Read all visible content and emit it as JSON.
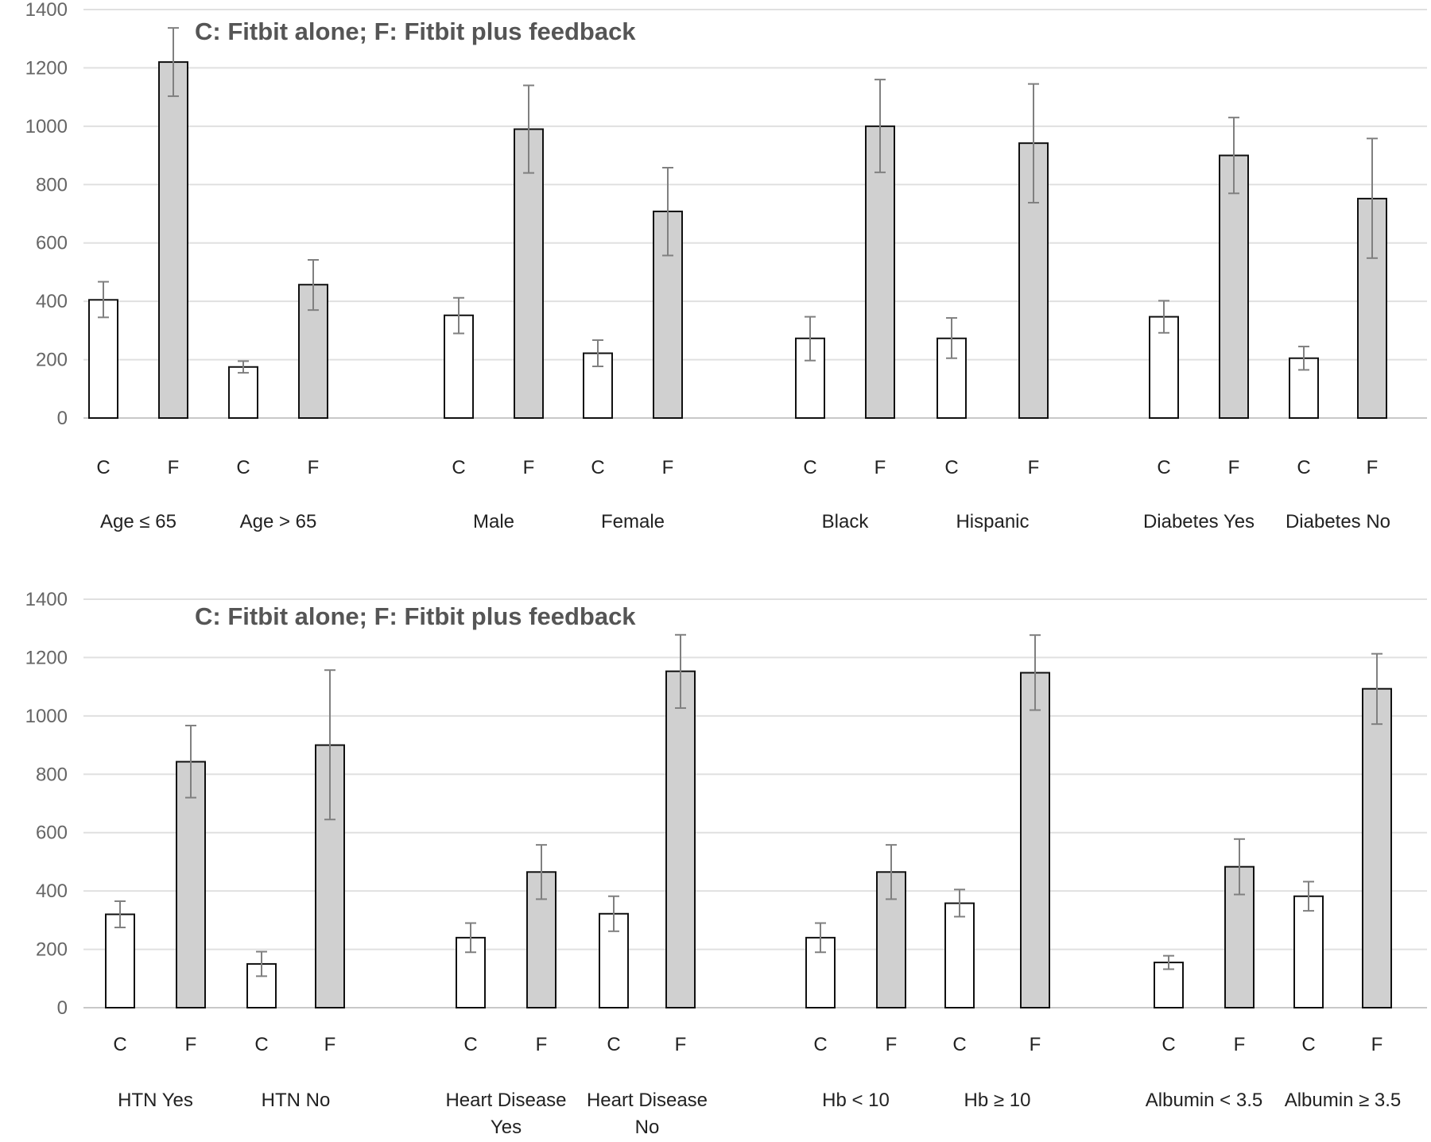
{
  "chart_data": [
    {
      "type": "bar",
      "title": "C: Fitbit alone; F: Fitbit plus feedback",
      "xlabel": "",
      "ylabel": "",
      "ylim": [
        0,
        1400
      ],
      "yticks": [
        0,
        200,
        400,
        600,
        800,
        1000,
        1200,
        1400
      ],
      "grid": true,
      "series": [
        {
          "name": "C: Fitbit alone",
          "color": "#ffffff"
        },
        {
          "name": "F: Fitbit plus feedback",
          "color": "#d0d0d0"
        }
      ],
      "groups": [
        {
          "label": [
            "Age ≤ 65"
          ],
          "bars": [
            {
              "tick": "C",
              "value": 405,
              "lo": 345,
              "hi": 467
            },
            {
              "tick": "F",
              "value": 1220,
              "lo": 1103,
              "hi": 1337
            }
          ]
        },
        {
          "label": [
            "Age > 65"
          ],
          "bars": [
            {
              "tick": "C",
              "value": 175,
              "lo": 155,
              "hi": 195
            },
            {
              "tick": "F",
              "value": 457,
              "lo": 370,
              "hi": 542
            }
          ]
        },
        {
          "label": [
            "Male"
          ],
          "bars": [
            {
              "tick": "C",
              "value": 352,
              "lo": 290,
              "hi": 412
            },
            {
              "tick": "F",
              "value": 990,
              "lo": 840,
              "hi": 1140
            }
          ]
        },
        {
          "label": [
            "Female"
          ],
          "bars": [
            {
              "tick": "C",
              "value": 222,
              "lo": 177,
              "hi": 267
            },
            {
              "tick": "F",
              "value": 708,
              "lo": 557,
              "hi": 858
            }
          ]
        },
        {
          "label": [
            "Black"
          ],
          "bars": [
            {
              "tick": "C",
              "value": 273,
              "lo": 197,
              "hi": 347
            },
            {
              "tick": "F",
              "value": 1000,
              "lo": 842,
              "hi": 1160
            }
          ]
        },
        {
          "label": [
            "Hispanic"
          ],
          "bars": [
            {
              "tick": "C",
              "value": 273,
              "lo": 205,
              "hi": 343
            },
            {
              "tick": "F",
              "value": 942,
              "lo": 738,
              "hi": 1145
            }
          ]
        },
        {
          "label": [
            "Diabetes Yes"
          ],
          "bars": [
            {
              "tick": "C",
              "value": 347,
              "lo": 292,
              "hi": 402
            },
            {
              "tick": "F",
              "value": 900,
              "lo": 770,
              "hi": 1030
            }
          ]
        },
        {
          "label": [
            "Diabetes No"
          ],
          "bars": [
            {
              "tick": "C",
              "value": 205,
              "lo": 165,
              "hi": 245
            },
            {
              "tick": "F",
              "value": 752,
              "lo": 548,
              "hi": 958
            }
          ]
        }
      ]
    },
    {
      "type": "bar",
      "title": "C: Fitbit alone; F: Fitbit plus feedback",
      "xlabel": "",
      "ylabel": "",
      "ylim": [
        0,
        1400
      ],
      "yticks": [
        0,
        200,
        400,
        600,
        800,
        1000,
        1200,
        1400
      ],
      "grid": true,
      "series": [
        {
          "name": "C: Fitbit alone",
          "color": "#ffffff"
        },
        {
          "name": "F: Fitbit plus feedback",
          "color": "#d0d0d0"
        }
      ],
      "groups": [
        {
          "label": [
            "HTN Yes"
          ],
          "bars": [
            {
              "tick": "C",
              "value": 320,
              "lo": 275,
              "hi": 365
            },
            {
              "tick": "F",
              "value": 843,
              "lo": 720,
              "hi": 967
            }
          ]
        },
        {
          "label": [
            "HTN No"
          ],
          "bars": [
            {
              "tick": "C",
              "value": 150,
              "lo": 108,
              "hi": 192
            },
            {
              "tick": "F",
              "value": 900,
              "lo": 645,
              "hi": 1157
            }
          ]
        },
        {
          "label": [
            "Heart Disease",
            "Yes"
          ],
          "bars": [
            {
              "tick": "C",
              "value": 240,
              "lo": 190,
              "hi": 290
            },
            {
              "tick": "F",
              "value": 465,
              "lo": 372,
              "hi": 558
            }
          ]
        },
        {
          "label": [
            "Heart Disease",
            "No"
          ],
          "bars": [
            {
              "tick": "C",
              "value": 322,
              "lo": 262,
              "hi": 382
            },
            {
              "tick": "F",
              "value": 1153,
              "lo": 1027,
              "hi": 1278
            }
          ]
        },
        {
          "label": [
            "Hb < 10"
          ],
          "bars": [
            {
              "tick": "C",
              "value": 240,
              "lo": 190,
              "hi": 290
            },
            {
              "tick": "F",
              "value": 465,
              "lo": 372,
              "hi": 558
            }
          ]
        },
        {
          "label": [
            "Hb ≥ 10"
          ],
          "bars": [
            {
              "tick": "C",
              "value": 358,
              "lo": 312,
              "hi": 405
            },
            {
              "tick": "F",
              "value": 1148,
              "lo": 1020,
              "hi": 1277
            }
          ]
        },
        {
          "label": [
            "Albumin < 3.5"
          ],
          "bars": [
            {
              "tick": "C",
              "value": 155,
              "lo": 132,
              "hi": 178
            },
            {
              "tick": "F",
              "value": 483,
              "lo": 388,
              "hi": 578
            }
          ]
        },
        {
          "label": [
            "Albumin ≥ 3.5"
          ],
          "bars": [
            {
              "tick": "C",
              "value": 382,
              "lo": 332,
              "hi": 432
            },
            {
              "tick": "F",
              "value": 1093,
              "lo": 972,
              "hi": 1213
            }
          ]
        }
      ]
    }
  ]
}
